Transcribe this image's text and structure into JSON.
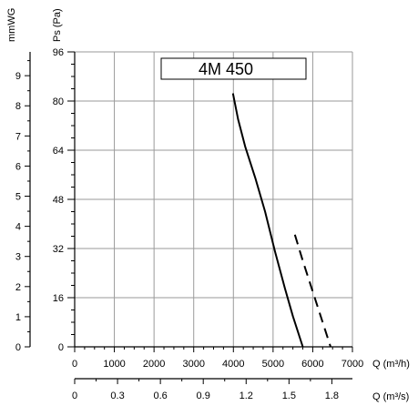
{
  "chart_data": {
    "type": "line",
    "title": "4M 450",
    "x_axis": {
      "label": "Q (m³/h)",
      "range": [
        0,
        7000
      ],
      "ticks": [
        0,
        1000,
        2000,
        3000,
        4000,
        5000,
        6000,
        7000
      ],
      "tick_labels": [
        "0",
        "1000",
        "2000",
        "3000",
        "4000",
        "5000",
        "6000",
        "7000"
      ]
    },
    "x_axis_secondary": {
      "label": "Q (m³/s)",
      "range": [
        0,
        1.944
      ],
      "tick_labels": [
        "0",
        "0.3",
        "0.6",
        "0.9",
        "1.2",
        "1.5",
        "1.8"
      ]
    },
    "y_axis": {
      "label": "Ps (Pa)",
      "range": [
        0,
        96
      ],
      "ticks": [
        0,
        16,
        32,
        48,
        64,
        80,
        96
      ],
      "tick_labels": [
        "0",
        "16",
        "32",
        "48",
        "64",
        "80",
        "96"
      ]
    },
    "y_axis_secondary": {
      "label": "mmWG",
      "range": [
        0,
        9.79
      ],
      "tick_labels": [
        "0",
        "1",
        "2",
        "3",
        "4",
        "5",
        "6",
        "7",
        "8",
        "9"
      ]
    },
    "grid": true,
    "series": [
      {
        "style": "solid",
        "x": [
          3990,
          4120,
          4300,
          4550,
          4800,
          5050,
          5300,
          5500,
          5750
        ],
        "y": [
          82.5,
          74,
          65,
          55,
          44,
          31,
          19,
          10,
          0
        ]
      },
      {
        "style": "dashed",
        "x": [
          5550,
          5750,
          6000,
          6250,
          6450
        ],
        "y": [
          36.5,
          28,
          18,
          8,
          0
        ]
      }
    ]
  }
}
